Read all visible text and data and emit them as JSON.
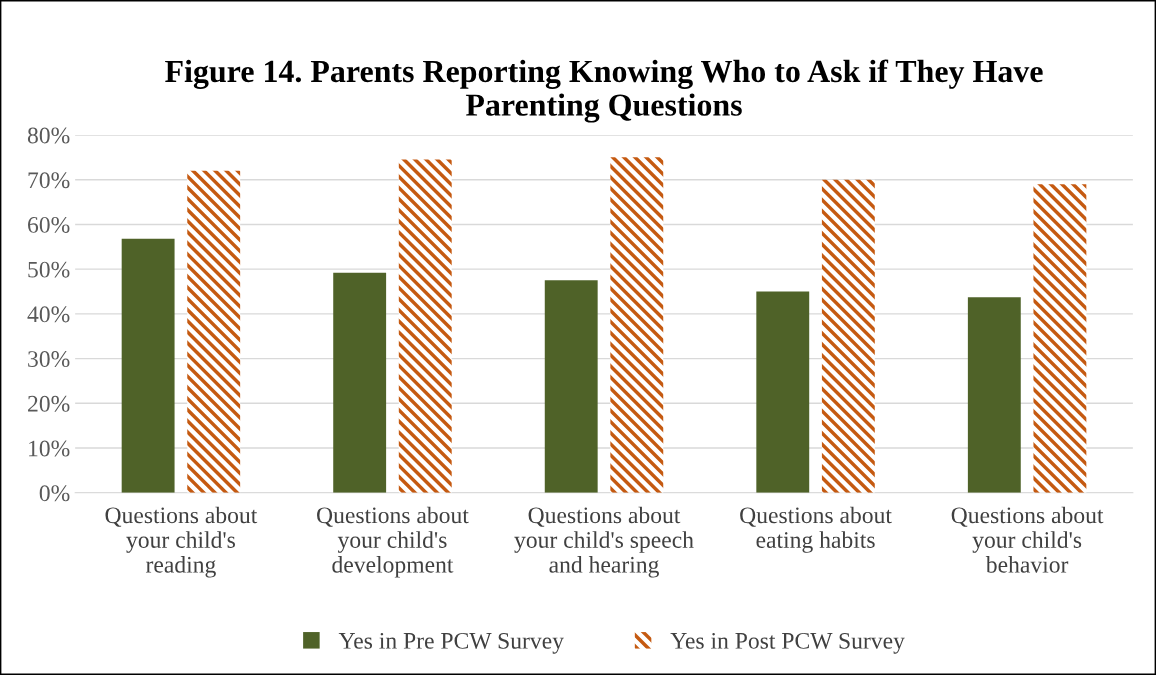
{
  "chart_data": {
    "type": "bar",
    "title": "Figure 14. Parents Reporting Knowing Who to Ask if They Have\nParenting Questions",
    "categories": [
      "Questions about\nyour child's\nreading",
      "Questions about\nyour child's\ndevelopment",
      "Questions about\nyour child's speech\nand hearing",
      "Questions about\neating habits",
      "Questions about\nyour child's\nbehavior"
    ],
    "series": [
      {
        "name": "Yes in Pre PCW Survey",
        "color": "#4f6228",
        "values": [
          56.8,
          49.2,
          47.5,
          45,
          43.7
        ]
      },
      {
        "name": "Yes in Post PCW Survey",
        "color": "#c55a11",
        "values": [
          72,
          74.5,
          75,
          70,
          69
        ]
      }
    ],
    "ylim": [
      0,
      80
    ],
    "yticks": [
      {
        "value": 0,
        "label": "0%"
      },
      {
        "value": 10,
        "label": "10%"
      },
      {
        "value": 20,
        "label": "20%"
      },
      {
        "value": 30,
        "label": "30%"
      },
      {
        "value": 40,
        "label": "40%"
      },
      {
        "value": 50,
        "label": "50%"
      },
      {
        "value": 60,
        "label": "60%"
      },
      {
        "value": 70,
        "label": "70%"
      },
      {
        "value": 80,
        "label": "80%"
      }
    ],
    "grid": "y",
    "legend": "bottom"
  }
}
